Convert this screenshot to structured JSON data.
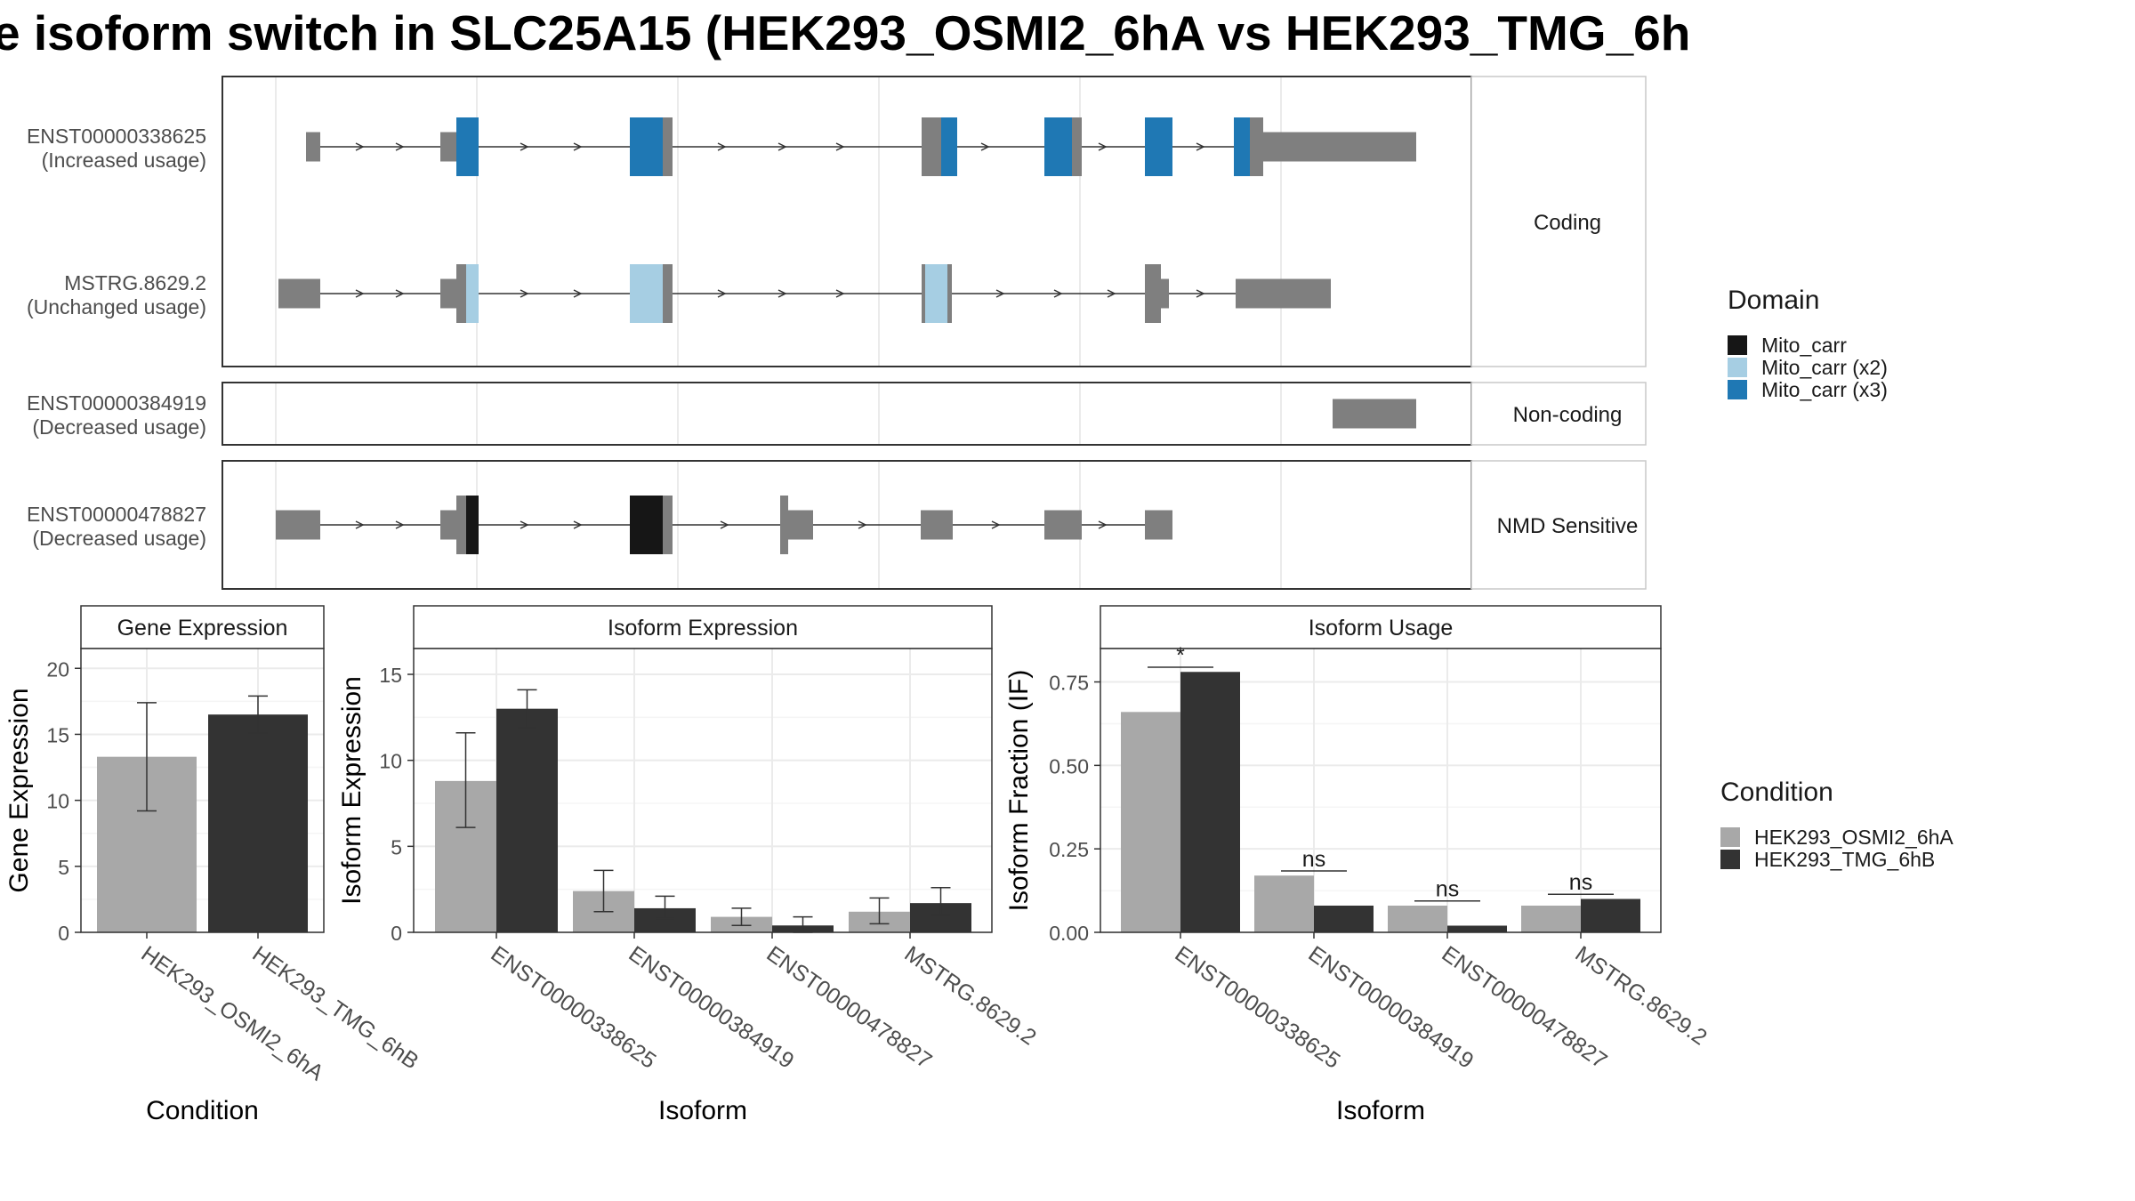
{
  "title": "e isoform switch in SLC25A15 (HEK293_OSMI2_6hA vs HEK293_TMG_6h",
  "structure": {
    "rows": [
      {
        "id": "ENST00000338625",
        "label1": "ENST00000338625",
        "label2": "(Increased usage)"
      },
      {
        "id": "MSTRG.8629.2",
        "label1": "MSTRG.8629.2",
        "label2": "(Unchanged usage)"
      },
      {
        "id": "ENST00000384919",
        "label1": "ENST00000384919",
        "label2": "(Decreased usage)"
      },
      {
        "id": "ENST00000478827",
        "label1": "ENST00000478827",
        "label2": "(Decreased usage)"
      }
    ],
    "facets": [
      {
        "label": "Coding",
        "rows": [
          0,
          1
        ]
      },
      {
        "label": "Non-coding",
        "rows": [
          2
        ]
      },
      {
        "label": "NMD Sensitive",
        "rows": [
          3
        ]
      }
    ]
  },
  "legend_domain": {
    "title": "Domain",
    "items": [
      {
        "label": "Mito_carr",
        "color": "#161616"
      },
      {
        "label": "Mito_carr (x2)",
        "color": "#a6cee3"
      },
      {
        "label": "Mito_carr (x3)",
        "color": "#1f78b4"
      }
    ]
  },
  "legend_condition": {
    "title": "Condition",
    "items": [
      {
        "label": "HEK293_OSMI2_6hA",
        "color": "#a8a8a8"
      },
      {
        "label": "HEK293_TMG_6hB",
        "color": "#333333"
      }
    ]
  },
  "chart_data": [
    {
      "type": "bar",
      "title": "Gene Expression",
      "xlabel": "Condition",
      "ylabel": "Gene Expression",
      "categories": [
        "HEK293_OSMI2_6hA",
        "HEK293_TMG_6hB"
      ],
      "values": [
        13.3,
        16.5
      ],
      "error_low": [
        9.2,
        15.1
      ],
      "error_high": [
        17.4,
        17.9
      ],
      "ylim": [
        0,
        21.5
      ],
      "yticks": [
        0,
        5,
        10,
        15,
        20
      ],
      "colors": [
        "#a8a8a8",
        "#333333"
      ]
    },
    {
      "type": "bar",
      "title": "Isoform Expression",
      "xlabel": "Isoform",
      "ylabel": "Isoform Expression",
      "categories": [
        "ENST00000338625",
        "ENST00000384919",
        "ENST00000478827",
        "MSTRG.8629.2"
      ],
      "series": [
        {
          "name": "HEK293_OSMI2_6hA",
          "values": [
            8.8,
            2.4,
            0.9,
            1.2
          ],
          "error_low": [
            6.1,
            1.2,
            0.4,
            0.5
          ],
          "error_high": [
            11.6,
            3.6,
            1.4,
            2.0
          ]
        },
        {
          "name": "HEK293_TMG_6hB",
          "values": [
            13.0,
            1.4,
            0.4,
            1.7
          ],
          "error_low": [
            11.9,
            0.8,
            0.0,
            1.0
          ],
          "error_high": [
            14.1,
            2.1,
            0.9,
            2.6
          ]
        }
      ],
      "ylim": [
        0,
        16.5
      ],
      "yticks": [
        0,
        5,
        10,
        15
      ]
    },
    {
      "type": "bar",
      "title": "Isoform Usage",
      "xlabel": "Isoform",
      "ylabel": "Isoform Fraction (IF)",
      "categories": [
        "ENST00000338625",
        "ENST00000384919",
        "ENST00000478827",
        "MSTRG.8629.2"
      ],
      "series": [
        {
          "name": "HEK293_OSMI2_6hA",
          "values": [
            0.66,
            0.17,
            0.08,
            0.08
          ]
        },
        {
          "name": "HEK293_TMG_6hB",
          "values": [
            0.78,
            0.08,
            0.02,
            0.1
          ]
        }
      ],
      "significance": [
        "*",
        "ns",
        "ns",
        "ns"
      ],
      "ylim": [
        0,
        0.85
      ],
      "yticks": [
        0,
        0.25,
        0.5,
        0.75
      ],
      "ytick_labels": [
        "0.00",
        "0.25",
        "0.50",
        "0.75"
      ]
    }
  ]
}
